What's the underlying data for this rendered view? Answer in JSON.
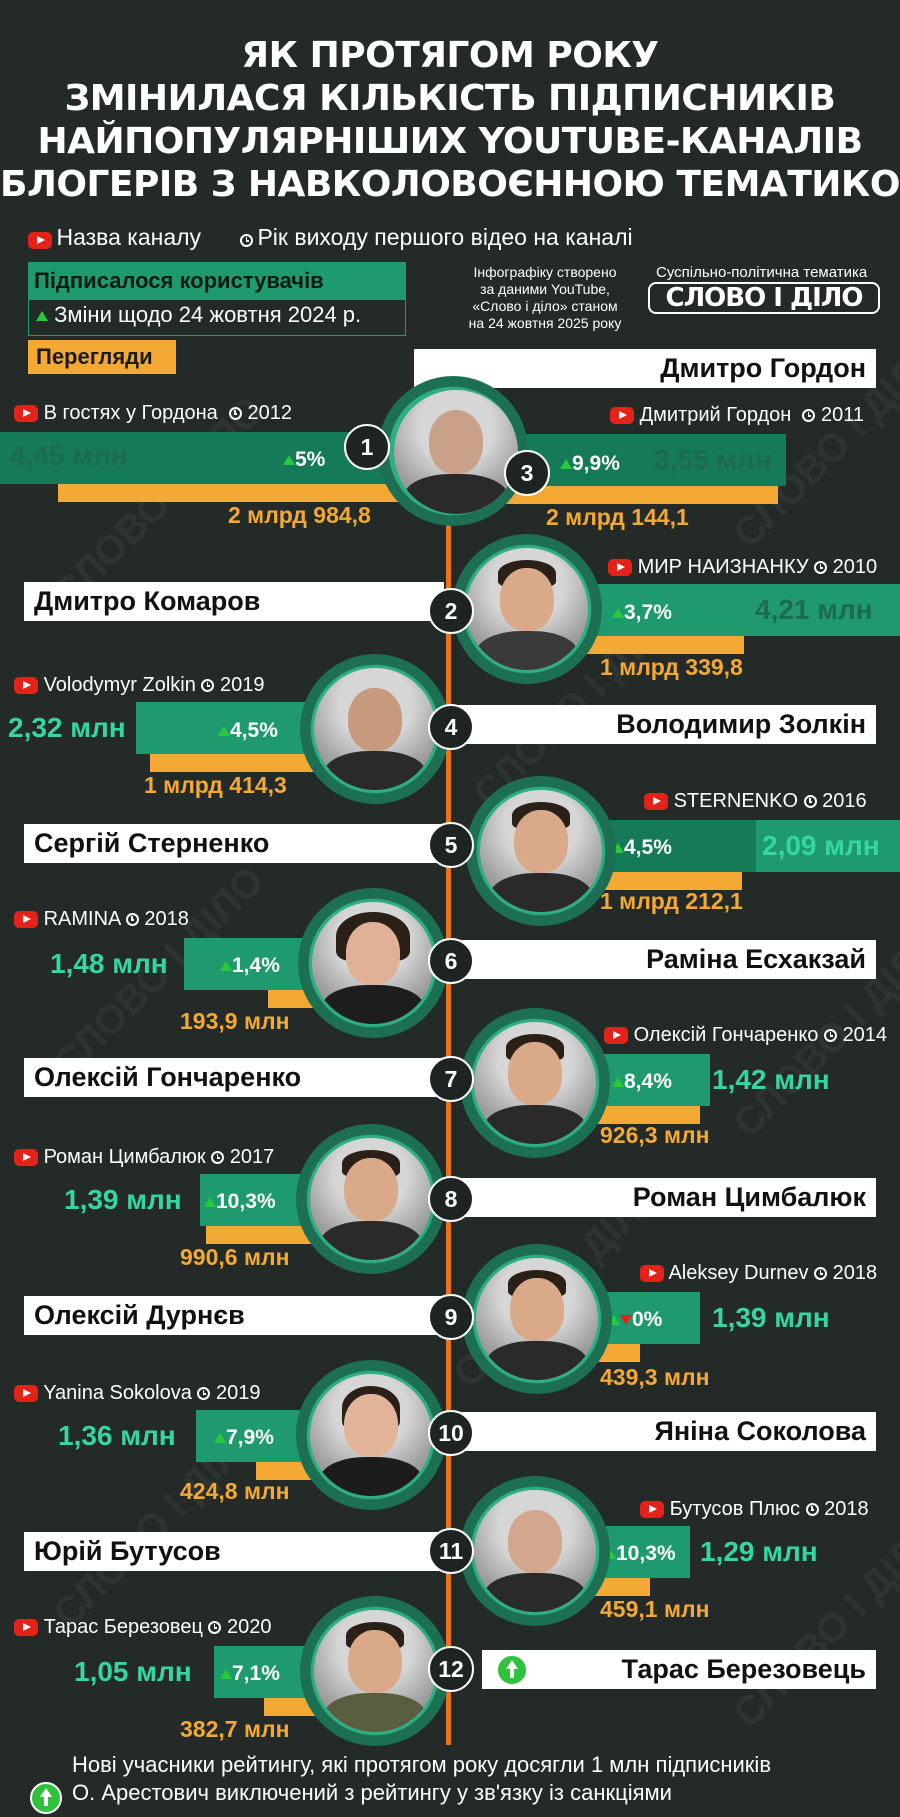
{
  "title": {
    "lines": [
      "ЯК ПРОТЯГОМ РОКУ",
      "ЗМІНИЛАСЯ КІЛЬКІСТЬ ПІДПИСНИКІВ",
      "НАЙПОПУЛЯРНІШИХ YOUTUBE-КАНАЛІВ",
      "БЛОГЕРІВ З НАВКОЛОВОЄННОЮ ТЕМАТИКОЮ"
    ]
  },
  "legend": {
    "channel_name": "Назва каналу",
    "first_video_year": "Рік виходу першого відео на каналі",
    "subscribers": "Підписалося користувачів",
    "change": "Зміни щодо 24 жовтня 2024 р.",
    "views": "Перегляди"
  },
  "source": {
    "lines": [
      "Інфографіку створено",
      "за даними YouTube,",
      "«Слово і діло» станом",
      "на 24 жовтня 2025 року"
    ]
  },
  "brand": {
    "tagline": "Суспільно-політична тематика",
    "logo": "СЛОВО І ДІЛО"
  },
  "watermark": "СЛОВО І ДІЛО",
  "people": [
    {
      "rank": "1",
      "name": "Дмитро Гордон",
      "channel": "В гостях у Гордона",
      "year": "2012",
      "subs": "4,45 млн",
      "change": "5%",
      "views": "2 млрд 984,8"
    },
    {
      "rank": "3",
      "name": "Дмитро Гордон",
      "channel": "Дмитрий Гордон",
      "year": "2011",
      "subs": "3,55 млн",
      "change": "9,9%",
      "views": "2 млрд 144,1"
    },
    {
      "rank": "2",
      "name": "Дмитро Комаров",
      "channel": "МИР НАИЗНАНКУ",
      "year": "2010",
      "subs": "4,21 млн",
      "change": "3,7%",
      "views": "1 млрд 339,8"
    },
    {
      "rank": "4",
      "name": "Володимир Золкін",
      "channel": "Volodymyr Zolkin",
      "year": "2019",
      "subs": "2,32 млн",
      "change": "4,5%",
      "views": "1 млрд 414,3"
    },
    {
      "rank": "5",
      "name": "Сергій Стерненко",
      "channel": "STERNENKO",
      "year": "2016",
      "subs": "2,09 млн",
      "change": "4,5%",
      "views": "1 млрд 212,1"
    },
    {
      "rank": "6",
      "name": "Раміна Есхакзай",
      "channel": "RAMINA",
      "year": "2018",
      "subs": "1,48 млн",
      "change": "1,4%",
      "views": "193,9 млн"
    },
    {
      "rank": "7",
      "name": "Олексій Гончаренко",
      "channel": "Олексій Гончаренко",
      "year": "2014",
      "subs": "1,42 млн",
      "change": "8,4%",
      "views": "926,3 млн"
    },
    {
      "rank": "8",
      "name": "Роман Цимбалюк",
      "channel": "Роман Цимбалюк",
      "year": "2017",
      "subs": "1,39 млн",
      "change": "10,3%",
      "views": "990,6 млн"
    },
    {
      "rank": "9",
      "name": "Олексій Дурнєв",
      "channel": "Aleksey Durnev",
      "year": "2018",
      "subs": "1,39 млн",
      "change": "0%",
      "views": "439,3 млн"
    },
    {
      "rank": "10",
      "name": "Яніна Соколова",
      "channel": "Yanina Sokolova",
      "year": "2019",
      "subs": "1,36 млн",
      "change": "7,9%",
      "views": "424,8 млн"
    },
    {
      "rank": "11",
      "name": "Юрій Бутусов",
      "channel": "Бутусов Плюс",
      "year": "2018",
      "subs": "1,29 млн",
      "change": "10,3%",
      "views": "459,1 млн"
    },
    {
      "rank": "12",
      "name": "Тарас Березовець",
      "channel": "Тарас Березовец",
      "year": "2020",
      "subs": "1,05 млн",
      "change": "7,1%",
      "views": "382,7 млн"
    }
  ],
  "footer": {
    "new_members": "Нові учасники рейтингу, які протягом року досягли 1 млн підписників",
    "excluded": "О. Арестович виключений з рейтингу у зв'язку із санкціями"
  },
  "colors": {
    "background": "#232a28",
    "subs_bar": "#1f9a6e",
    "views_bar": "#f4a935",
    "spine": "#e8731a",
    "youtube": "#e32219",
    "up": "#28c93c"
  }
}
